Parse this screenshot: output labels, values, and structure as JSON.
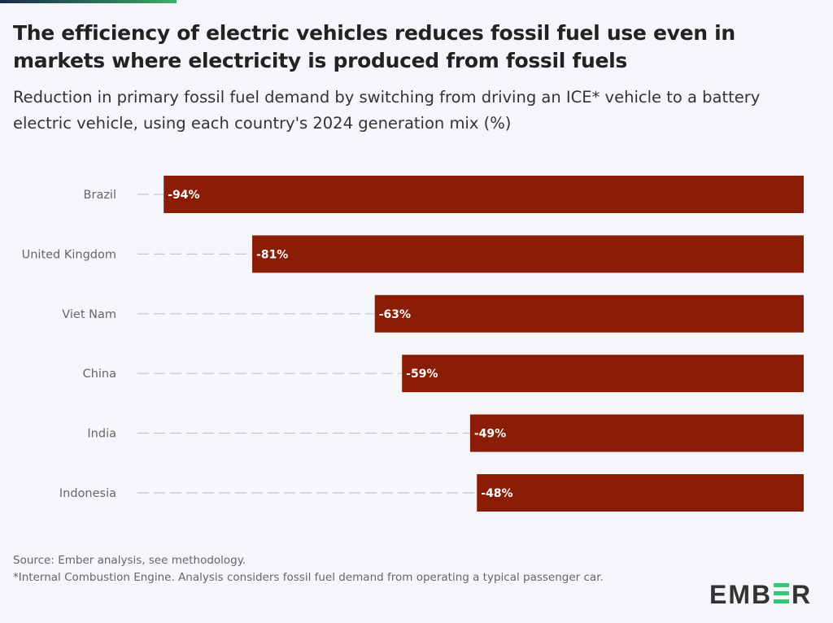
{
  "title": "The efficiency of electric vehicles reduces fossil fuel use even in markets where electricity is produced from fossil fuels",
  "subtitle": "Reduction in primary fossil fuel demand by switching from driving an ICE* vehicle to a battery electric vehicle, using each country's 2024 generation mix (%)",
  "chart_data": {
    "type": "bar",
    "orientation": "horizontal",
    "categories": [
      "Brazil",
      "United Kingdom",
      "Viet Nam",
      "China",
      "India",
      "Indonesia"
    ],
    "values": [
      -94,
      -81,
      -63,
      -59,
      -49,
      -48
    ],
    "data_labels": [
      "-94%",
      "-81%",
      "-63%",
      "-59%",
      "-49%",
      "-48%"
    ],
    "xlim": [
      -100,
      0
    ],
    "grid": false,
    "bar_color": "#8b1d06"
  },
  "footer": {
    "source": "Source: Ember analysis, see methodology.",
    "note": "*Internal Combustion Engine. Analysis considers fossil fuel demand from operating a typical passenger car."
  },
  "logo": {
    "text": "EMBER",
    "color": "#333333",
    "accent": "#2ecc71"
  }
}
